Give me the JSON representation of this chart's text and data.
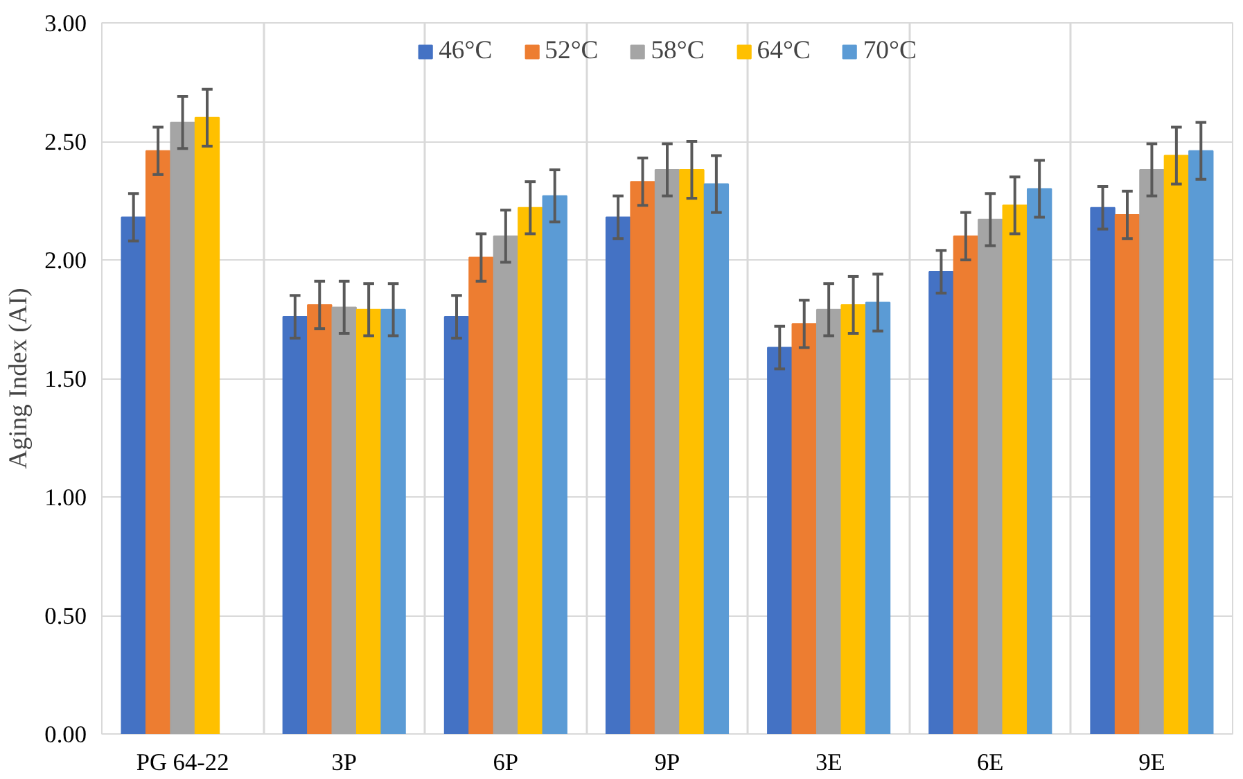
{
  "chart_data": {
    "type": "bar",
    "ylabel": "Aging Index (AI)",
    "categories": [
      "PG 64-22",
      "3P",
      "6P",
      "9P",
      "3E",
      "6E",
      "9E"
    ],
    "ylim": [
      0,
      3
    ],
    "yticks": [
      {
        "value": 0,
        "label": "0.00"
      },
      {
        "value": 0.5,
        "label": "0.50"
      },
      {
        "value": 1,
        "label": "1.00"
      },
      {
        "value": 1.5,
        "label": "1.50"
      },
      {
        "value": 2,
        "label": "2.00"
      },
      {
        "value": 2.5,
        "label": "2.50"
      },
      {
        "value": 3,
        "label": "3.00"
      }
    ],
    "grid": true,
    "legend": "top",
    "series": [
      {
        "name": "46°C",
        "color": "#4472c4",
        "values": [
          2.18,
          1.76,
          1.76,
          2.18,
          1.63,
          1.95,
          2.22
        ],
        "errors": [
          0.1,
          0.09,
          0.09,
          0.09,
          0.09,
          0.09,
          0.09
        ]
      },
      {
        "name": "52°C",
        "color": "#ed7d31",
        "values": [
          2.46,
          1.81,
          2.01,
          2.33,
          1.73,
          2.1,
          2.19
        ],
        "errors": [
          0.1,
          0.1,
          0.1,
          0.1,
          0.1,
          0.1,
          0.1
        ]
      },
      {
        "name": "58°C",
        "color": "#a5a5a5",
        "values": [
          2.58,
          1.8,
          2.1,
          2.38,
          1.79,
          2.17,
          2.38
        ],
        "errors": [
          0.11,
          0.11,
          0.11,
          0.11,
          0.11,
          0.11,
          0.11
        ]
      },
      {
        "name": "64°C",
        "color": "#ffc000",
        "values": [
          2.6,
          1.79,
          2.22,
          2.38,
          1.81,
          2.23,
          2.44
        ],
        "errors": [
          0.12,
          0.11,
          0.11,
          0.12,
          0.12,
          0.12,
          0.12
        ]
      },
      {
        "name": "70°C",
        "color": "#5b9bd5",
        "values": [
          null,
          1.79,
          2.27,
          2.32,
          1.82,
          2.3,
          2.46
        ],
        "errors": [
          null,
          0.11,
          0.11,
          0.12,
          0.12,
          0.12,
          0.12
        ]
      }
    ]
  }
}
